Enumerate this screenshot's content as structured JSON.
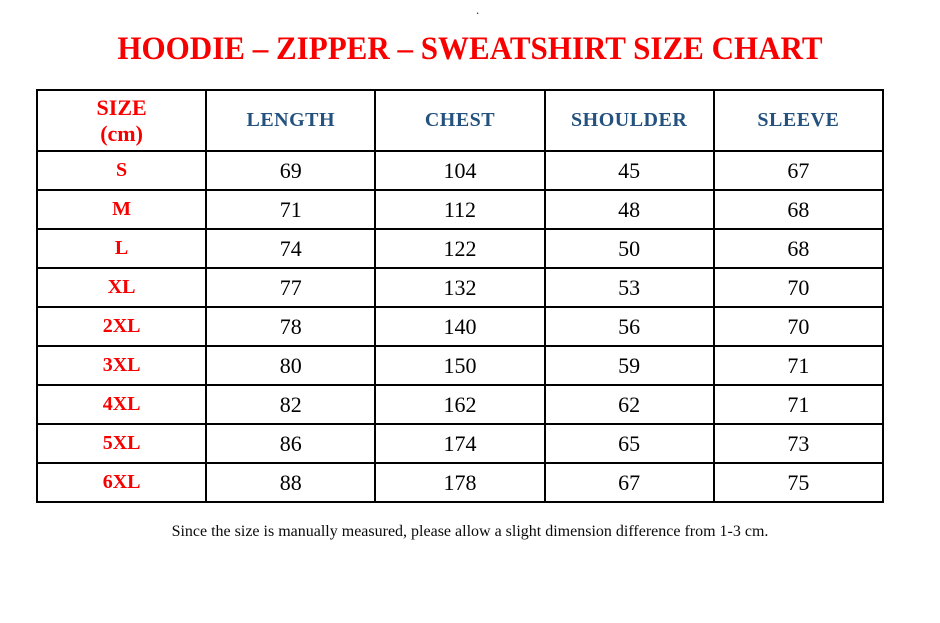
{
  "page": {
    "stray_dot": "."
  },
  "title": "HOODIE – ZIPPER – SWEATSHIRT SIZE CHART",
  "colors": {
    "red": "#f80000",
    "blue": "#24517e",
    "ink": "#000000"
  },
  "table": {
    "size_header": {
      "line1": "SIZE",
      "line2": "(cm)"
    },
    "columns": [
      "LENGTH",
      "CHEST",
      "SHOULDER",
      "SLEEVE"
    ],
    "rows": [
      {
        "size": "S",
        "length": "69",
        "chest": "104",
        "shoulder": "45",
        "sleeve": "67"
      },
      {
        "size": "M",
        "length": "71",
        "chest": "112",
        "shoulder": "48",
        "sleeve": "68"
      },
      {
        "size": "L",
        "length": "74",
        "chest": "122",
        "shoulder": "50",
        "sleeve": "68"
      },
      {
        "size": "XL",
        "length": "77",
        "chest": "132",
        "shoulder": "53",
        "sleeve": "70"
      },
      {
        "size": "2XL",
        "length": "78",
        "chest": "140",
        "shoulder": "56",
        "sleeve": "70"
      },
      {
        "size": "3XL",
        "length": "80",
        "chest": "150",
        "shoulder": "59",
        "sleeve": "71"
      },
      {
        "size": "4XL",
        "length": "82",
        "chest": "162",
        "shoulder": "62",
        "sleeve": "71"
      },
      {
        "size": "5XL",
        "length": "86",
        "chest": "174",
        "shoulder": "65",
        "sleeve": "73"
      },
      {
        "size": "6XL",
        "length": "88",
        "chest": "178",
        "shoulder": "67",
        "sleeve": "75"
      }
    ]
  },
  "footer": {
    "note": "Since the size is manually measured, please allow a slight dimension difference from 1-3 cm."
  },
  "chart_data": {
    "type": "table",
    "title": "HOODIE – ZIPPER – SWEATSHIRT SIZE CHART",
    "columns": [
      "SIZE (cm)",
      "LENGTH",
      "CHEST",
      "SHOULDER",
      "SLEEVE"
    ],
    "rows": [
      [
        "S",
        69,
        104,
        45,
        67
      ],
      [
        "M",
        71,
        112,
        48,
        68
      ],
      [
        "L",
        74,
        122,
        50,
        68
      ],
      [
        "XL",
        77,
        132,
        53,
        70
      ],
      [
        "2XL",
        78,
        140,
        56,
        70
      ],
      [
        "3XL",
        80,
        150,
        59,
        71
      ],
      [
        "4XL",
        82,
        162,
        62,
        71
      ],
      [
        "5XL",
        86,
        174,
        65,
        73
      ],
      [
        "6XL",
        88,
        178,
        67,
        75
      ]
    ]
  }
}
